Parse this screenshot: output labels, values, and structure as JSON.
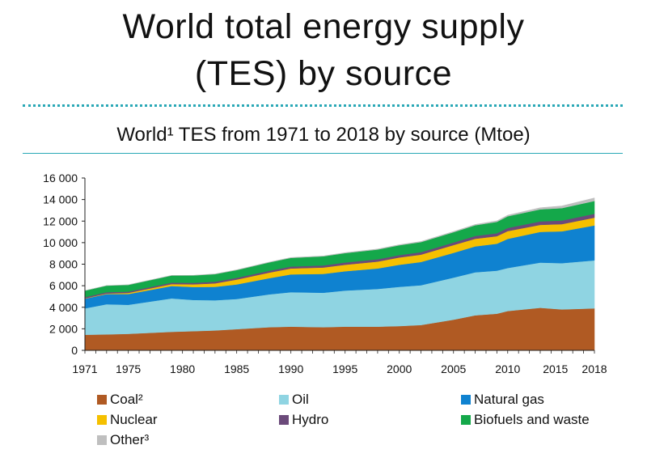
{
  "title_line1": "World total energy supply",
  "title_line2": "(TES) by source",
  "chart_data": {
    "type": "area",
    "stacked": true,
    "title": "World¹ TES from 1971 to 2018 by source (Mtoe)",
    "xlabel": "",
    "ylabel": "",
    "xlim": [
      1971,
      2018
    ],
    "ylim": [
      0,
      16000
    ],
    "x_ticks": [
      1971,
      1975,
      1980,
      1985,
      1990,
      1995,
      2000,
      2005,
      2010,
      2015,
      2018
    ],
    "y_ticks": [
      0,
      2000,
      4000,
      6000,
      8000,
      10000,
      12000,
      14000,
      16000
    ],
    "y_tick_labels": [
      "0",
      "2 000",
      "4 000",
      "6 000",
      "8 000",
      "10 000",
      "12 000",
      "14 000",
      "16 000"
    ],
    "grid": false,
    "legend_position": "bottom",
    "x": [
      1971,
      1973,
      1975,
      1979,
      1981,
      1983,
      1985,
      1988,
      1990,
      1993,
      1995,
      1998,
      2000,
      2002,
      2005,
      2007,
      2009,
      2010,
      2013,
      2015,
      2018
    ],
    "series": [
      {
        "name": "Coal²",
        "color": "#b05a23",
        "values": [
          1450,
          1480,
          1530,
          1720,
          1780,
          1850,
          1970,
          2150,
          2200,
          2150,
          2200,
          2200,
          2250,
          2350,
          2850,
          3250,
          3400,
          3650,
          3950,
          3800,
          3900
        ]
      },
      {
        "name": "Oil",
        "color": "#8fd4e2",
        "values": [
          2450,
          2800,
          2700,
          3100,
          2900,
          2800,
          2800,
          3050,
          3200,
          3200,
          3350,
          3500,
          3650,
          3700,
          3900,
          4000,
          4000,
          4000,
          4200,
          4300,
          4450
        ]
      },
      {
        "name": "Natural gas",
        "color": "#0f82d0",
        "values": [
          900,
          950,
          1000,
          1150,
          1200,
          1250,
          1350,
          1500,
          1650,
          1750,
          1800,
          1900,
          2050,
          2150,
          2300,
          2400,
          2500,
          2700,
          2850,
          2950,
          3250
        ]
      },
      {
        "name": "Nuclear",
        "color": "#f5c000",
        "values": [
          30,
          50,
          100,
          180,
          250,
          320,
          450,
          520,
          550,
          590,
          600,
          640,
          670,
          690,
          720,
          710,
          700,
          720,
          650,
          670,
          720
        ]
      },
      {
        "name": "Hydro",
        "color": "#6b4a7a",
        "values": [
          110,
          120,
          125,
          140,
          145,
          155,
          165,
          175,
          185,
          195,
          210,
          220,
          225,
          230,
          245,
          260,
          275,
          295,
          325,
          335,
          360
        ]
      },
      {
        "name": "Biofuels and waste",
        "color": "#14a84a",
        "values": [
          600,
          610,
          625,
          660,
          680,
          700,
          720,
          770,
          800,
          840,
          870,
          900,
          910,
          930,
          950,
          990,
          1050,
          1080,
          1120,
          1150,
          1190
        ]
      },
      {
        "name": "Other³",
        "color": "#bfbfbf",
        "values": [
          5,
          8,
          10,
          15,
          18,
          20,
          25,
          30,
          35,
          40,
          45,
          50,
          55,
          60,
          70,
          80,
          100,
          110,
          150,
          200,
          280
        ]
      }
    ]
  }
}
